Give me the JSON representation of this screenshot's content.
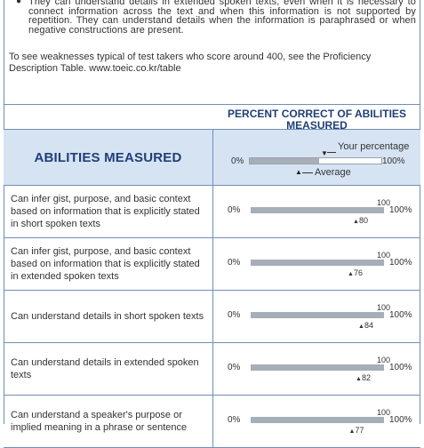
{
  "intro": {
    "bullet_text": "They can understand details in extended spoken texts, even when it is necessary to connect information across the text and when this information is not supported by repetition. They can understand details when the information is paraphrased or when negative constructions are present.",
    "note": "To see weaknesses typical of test takers who score around 400, see the Proficiency Description Table. www.toeic.co.kr/table"
  },
  "table": {
    "abilities_header": "ABILITIES MEASURED",
    "percent_header": "PERCENT CORRECT OF ABILITIES MEASURED",
    "legend": {
      "your_percentage": "Your percentage",
      "average": "Average",
      "zero": "0%",
      "hundred": "100%"
    },
    "rows": [
      {
        "ability": "Can infer gist, purpose, and basic context based on information that is explicitly stated in short spoken texts",
        "zero": "0%",
        "top100": "100",
        "hundred": "100%",
        "average": 80
      },
      {
        "ability": "Can infer gist, purpose, and basic context based on information that is explicitly stated in extended spoken texts",
        "zero": "0%",
        "top100": "100",
        "hundred": "100%",
        "average": 76
      },
      {
        "ability": "Can understand details in short spoken texts",
        "zero": "0%",
        "top100": "100",
        "hundred": "100%",
        "average": 84
      },
      {
        "ability": "Can understand details in extended spoken texts",
        "zero": "0%",
        "top100": "100",
        "hundred": "100%",
        "average": 82
      },
      {
        "ability": "Can understand a speaker's purpose or implied meaning in a phrase or sentence",
        "zero": "0%",
        "top100": "100",
        "hundred": "100%",
        "average": 77
      }
    ]
  }
}
